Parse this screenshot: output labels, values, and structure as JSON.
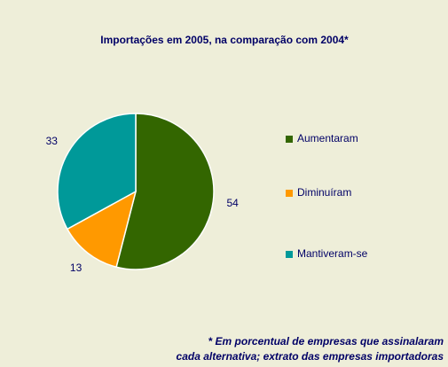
{
  "chart_data": {
    "type": "pie",
    "title": "Importações em 2005, na comparação com 2004*",
    "categories": [
      "Aumentaram",
      "Diminuíram",
      "Mantiveram-se"
    ],
    "values": [
      54,
      13,
      33
    ],
    "colors": [
      "#336600",
      "#ff9900",
      "#009999"
    ],
    "legend": "right",
    "note": [
      "* Em porcentual de empresas que assinalaram",
      "cada alternativa; extrato das empresas importadoras"
    ]
  }
}
